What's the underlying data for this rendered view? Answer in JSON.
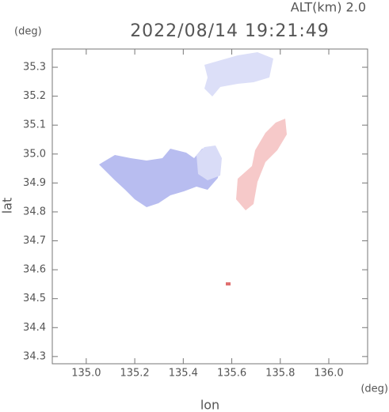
{
  "chart_data": {
    "type": "map",
    "title": "2022/08/14 19:21:49",
    "altitude_label": "ALT(km) 2.0",
    "y_unit": "(deg)",
    "x_unit": "(deg)",
    "x_label": "lon",
    "y_label": "lat",
    "xlim": [
      134.86,
      136.16
    ],
    "ylim": [
      34.275,
      35.363
    ],
    "xticks": [
      {
        "value": 135,
        "label": "135.0"
      },
      135.2,
      135.4,
      135.6,
      135.8,
      {
        "value": 136,
        "label": "136.0"
      }
    ],
    "yticks": [
      34.3,
      34.4,
      34.5,
      34.6,
      34.7,
      34.8,
      34.9,
      {
        "value": 35,
        "label": "35.0"
      },
      35.1,
      35.2,
      35.3
    ]
  }
}
